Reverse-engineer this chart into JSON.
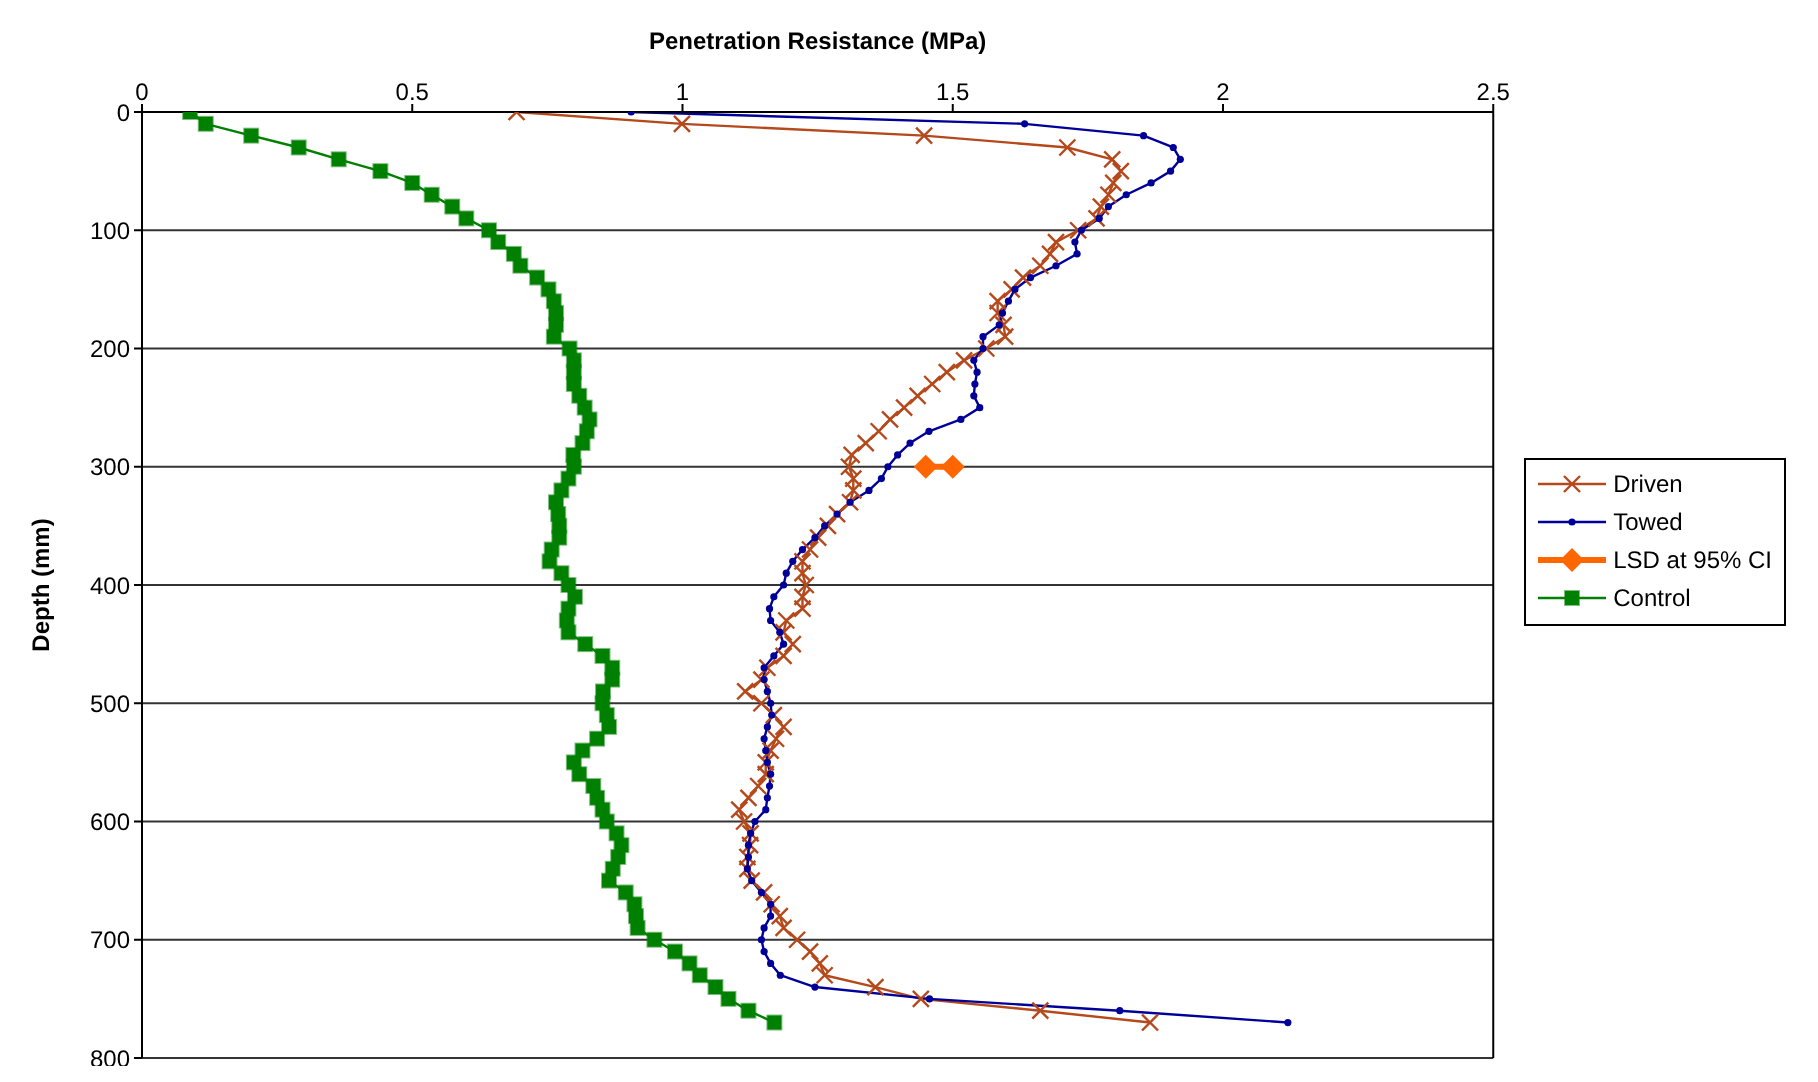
{
  "chart_data": {
    "type": "line",
    "xlabel": "Penetration Resistance (MPa)",
    "ylabel": "Depth (mm)",
    "xlim": [
      0,
      2.5
    ],
    "xticks": [
      0,
      0.5,
      1,
      1.5,
      2,
      2.5
    ],
    "ylim": [
      800,
      0
    ],
    "yticks": [
      0,
      100,
      200,
      300,
      400,
      500,
      600,
      700,
      800
    ],
    "grid": "y",
    "legend": "right",
    "line_style": "solid",
    "series": [
      {
        "name": "Driven",
        "color": "#b5491c",
        "marker": "cross",
        "x": [
          0.693,
          0.999,
          1.447,
          1.712,
          1.795,
          1.811,
          1.797,
          1.788,
          1.774,
          1.766,
          1.732,
          1.691,
          1.68,
          1.662,
          1.63,
          1.609,
          1.583,
          1.583,
          1.594,
          1.597,
          1.562,
          1.521,
          1.489,
          1.462,
          1.435,
          1.41,
          1.384,
          1.363,
          1.339,
          1.313,
          1.308,
          1.316,
          1.316,
          1.31,
          1.286,
          1.269,
          1.251,
          1.236,
          1.222,
          1.222,
          1.228,
          1.222,
          1.222,
          1.192,
          1.187,
          1.204,
          1.187,
          1.157,
          1.146,
          1.116,
          1.146,
          1.169,
          1.187,
          1.173,
          1.163,
          1.154,
          1.154,
          1.14,
          1.122,
          1.105,
          1.114,
          1.126,
          1.125,
          1.12,
          1.12,
          1.128,
          1.151,
          1.165,
          1.18,
          1.187,
          1.212,
          1.236,
          1.254,
          1.263,
          1.357,
          1.441,
          1.662,
          1.865
        ],
        "values": [
          0,
          10,
          20,
          30,
          40,
          50,
          60,
          70,
          80,
          90,
          100,
          110,
          120,
          130,
          140,
          150,
          160,
          170,
          180,
          190,
          200,
          210,
          220,
          230,
          240,
          250,
          260,
          270,
          280,
          290,
          300,
          310,
          320,
          330,
          340,
          350,
          360,
          370,
          380,
          390,
          400,
          410,
          420,
          430,
          440,
          450,
          460,
          470,
          480,
          490,
          500,
          510,
          520,
          530,
          540,
          550,
          560,
          570,
          580,
          590,
          600,
          610,
          620,
          630,
          640,
          650,
          660,
          670,
          680,
          690,
          700,
          710,
          720,
          730,
          740,
          750,
          760,
          770
        ]
      },
      {
        "name": "Towed",
        "color": "#000099",
        "marker": "circle",
        "x": [
          0.905,
          1.633,
          1.853,
          1.908,
          1.921,
          1.903,
          1.867,
          1.821,
          1.788,
          1.771,
          1.738,
          1.726,
          1.73,
          1.691,
          1.644,
          1.615,
          1.603,
          1.592,
          1.586,
          1.556,
          1.556,
          1.539,
          1.545,
          1.541,
          1.539,
          1.55,
          1.515,
          1.456,
          1.421,
          1.398,
          1.38,
          1.368,
          1.345,
          1.31,
          1.286,
          1.263,
          1.245,
          1.222,
          1.204,
          1.192,
          1.187,
          1.169,
          1.161,
          1.163,
          1.18,
          1.187,
          1.169,
          1.151,
          1.151,
          1.157,
          1.163,
          1.165,
          1.157,
          1.151,
          1.154,
          1.157,
          1.163,
          1.161,
          1.157,
          1.154,
          1.134,
          1.126,
          1.122,
          1.122,
          1.12,
          1.128,
          1.146,
          1.163,
          1.163,
          1.151,
          1.146,
          1.151,
          1.163,
          1.181,
          1.245,
          1.457,
          1.809,
          2.12
        ],
        "values": [
          0,
          10,
          20,
          30,
          40,
          50,
          60,
          70,
          80,
          90,
          100,
          110,
          120,
          130,
          140,
          150,
          160,
          170,
          180,
          190,
          200,
          210,
          220,
          230,
          240,
          250,
          260,
          270,
          280,
          290,
          300,
          310,
          320,
          330,
          340,
          350,
          360,
          370,
          380,
          390,
          400,
          410,
          420,
          430,
          440,
          450,
          460,
          470,
          480,
          490,
          500,
          510,
          520,
          530,
          540,
          550,
          560,
          570,
          580,
          590,
          600,
          610,
          620,
          630,
          640,
          650,
          660,
          670,
          680,
          690,
          700,
          710,
          720,
          730,
          740,
          750,
          760,
          770
        ]
      },
      {
        "name": "LSD at 95% CI",
        "color": "#ff6600",
        "marker": "diamond",
        "x": [
          1.45,
          1.5
        ],
        "values": [
          300,
          300
        ]
      },
      {
        "name": "Control",
        "color": "#008000",
        "marker": "square",
        "x": [
          0.089,
          0.118,
          0.202,
          0.29,
          0.364,
          0.441,
          0.5,
          0.536,
          0.574,
          0.6,
          0.642,
          0.659,
          0.688,
          0.7,
          0.731,
          0.752,
          0.762,
          0.766,
          0.766,
          0.762,
          0.791,
          0.799,
          0.799,
          0.799,
          0.809,
          0.819,
          0.828,
          0.823,
          0.815,
          0.798,
          0.799,
          0.789,
          0.776,
          0.766,
          0.77,
          0.772,
          0.772,
          0.758,
          0.754,
          0.776,
          0.789,
          0.801,
          0.789,
          0.786,
          0.789,
          0.82,
          0.852,
          0.87,
          0.87,
          0.853,
          0.852,
          0.86,
          0.864,
          0.842,
          0.815,
          0.799,
          0.809,
          0.835,
          0.842,
          0.852,
          0.86,
          0.878,
          0.887,
          0.881,
          0.871,
          0.864,
          0.895,
          0.911,
          0.914,
          0.917,
          0.948,
          0.986,
          1.013,
          1.032,
          1.061,
          1.085,
          1.122,
          1.17
        ],
        "values": [
          0,
          10,
          20,
          30,
          40,
          50,
          60,
          70,
          80,
          90,
          100,
          110,
          120,
          130,
          140,
          150,
          160,
          170,
          180,
          190,
          200,
          210,
          220,
          230,
          240,
          250,
          260,
          270,
          280,
          290,
          300,
          310,
          320,
          330,
          340,
          350,
          360,
          370,
          380,
          390,
          400,
          410,
          420,
          430,
          440,
          450,
          460,
          470,
          480,
          490,
          500,
          510,
          520,
          530,
          540,
          550,
          560,
          570,
          580,
          590,
          600,
          610,
          620,
          630,
          640,
          650,
          660,
          670,
          680,
          690,
          700,
          710,
          720,
          730,
          740,
          750,
          760,
          770
        ]
      }
    ]
  }
}
